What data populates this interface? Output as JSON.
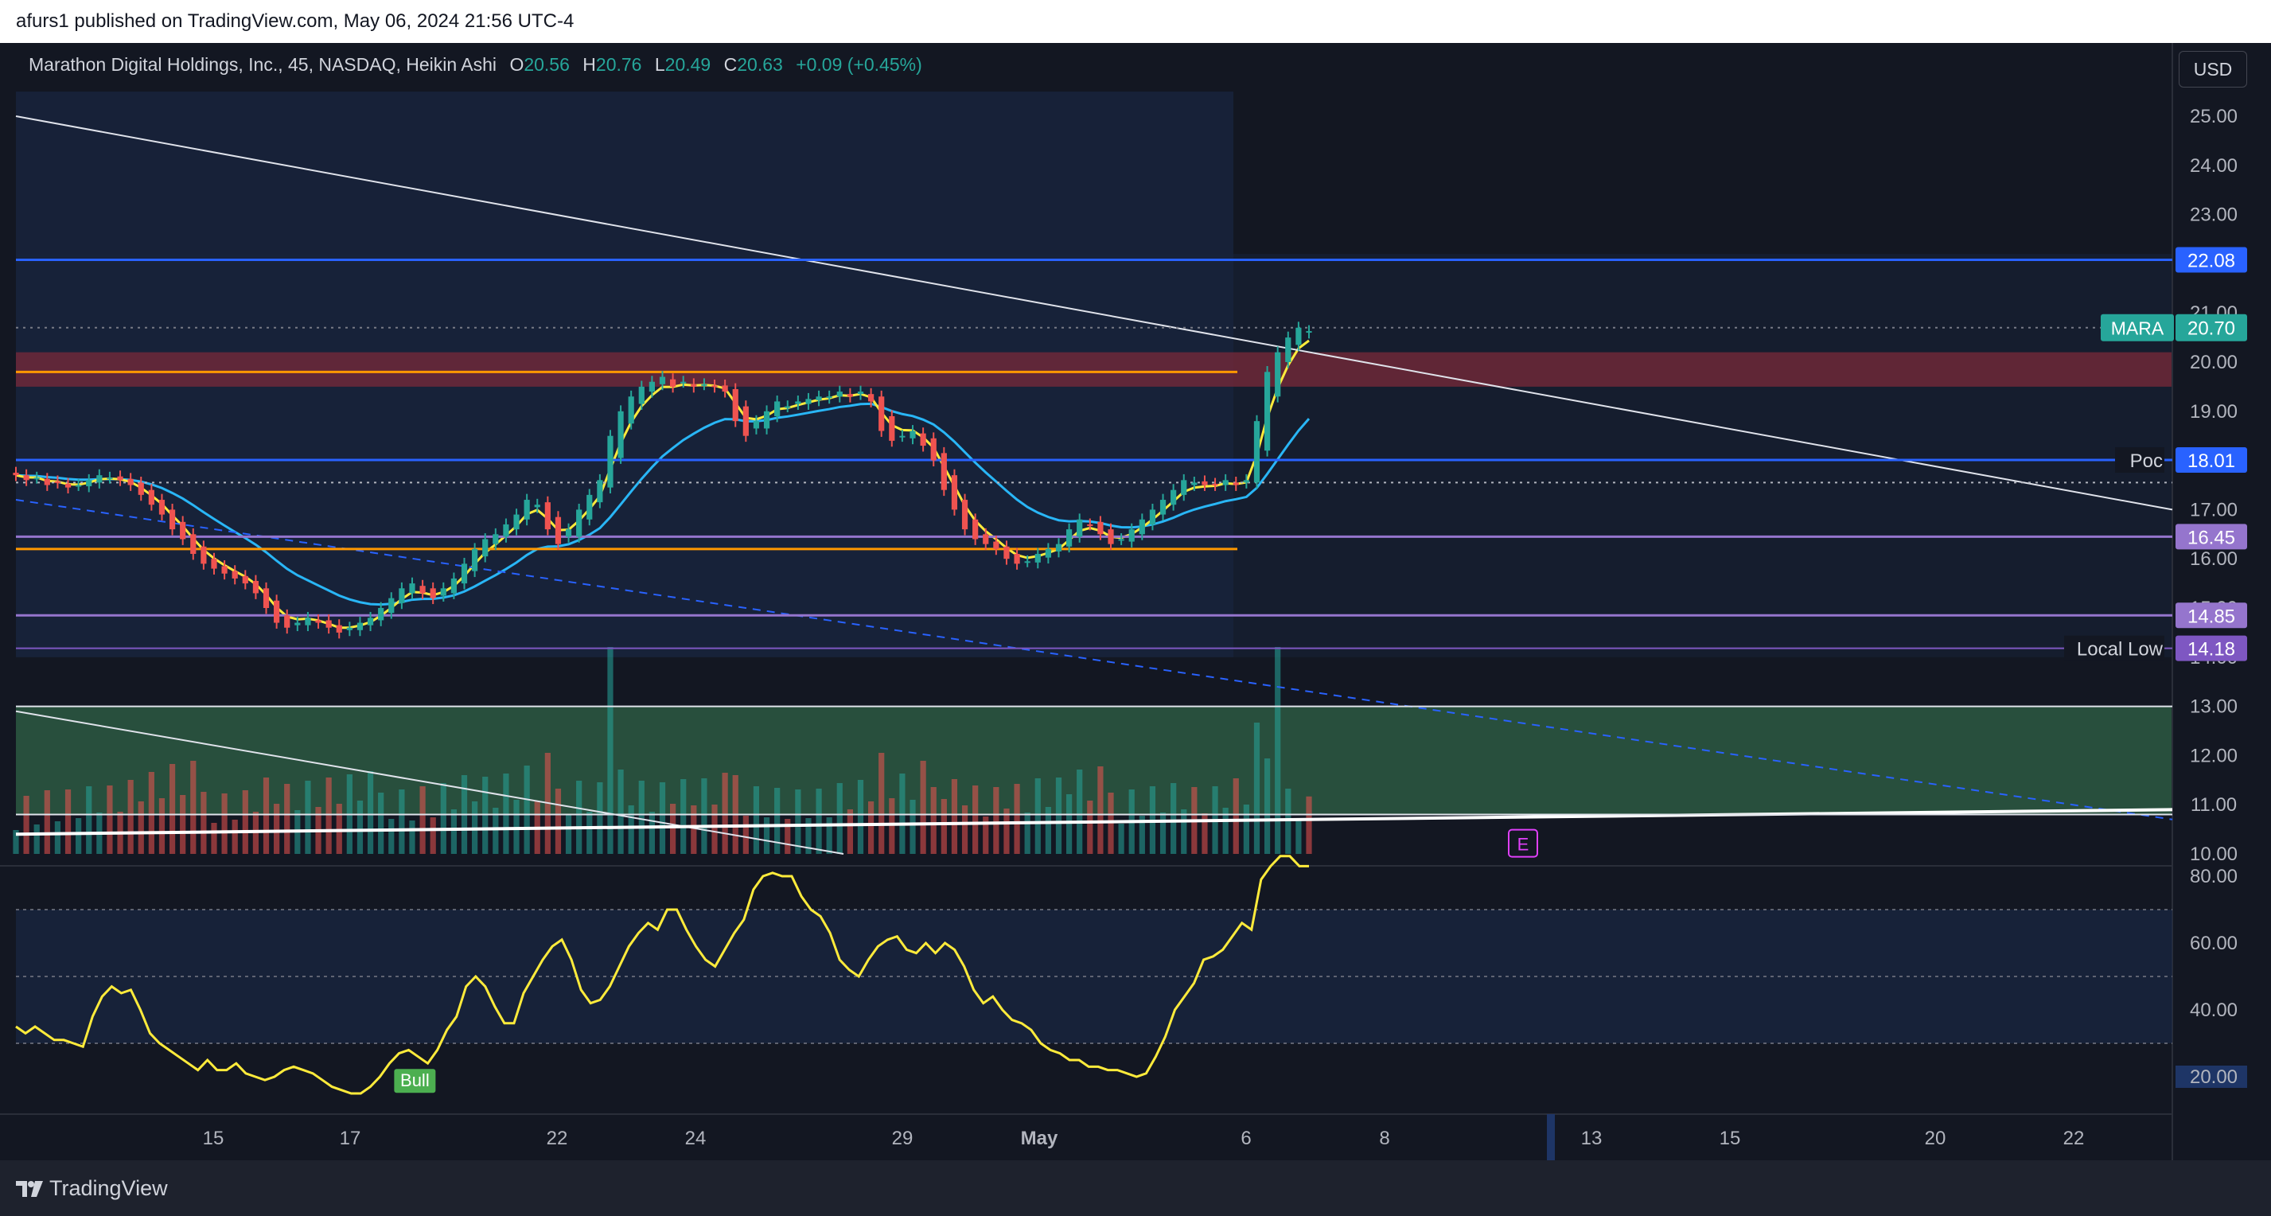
{
  "header": {
    "publish_line": "afurs1 published on TradingView.com, May 06, 2024 21:56 UTC-4"
  },
  "footer": {
    "brand": "TradingView"
  },
  "legend": {
    "title": "Marathon Digital Holdings, Inc., 45, NASDAQ, Heikin Ashi",
    "o_label": "O",
    "o": "20.56",
    "h_label": "H",
    "h": "20.76",
    "l_label": "L",
    "l": "20.49",
    "c_label": "C",
    "c": "20.63",
    "change": "+0.09 (+0.45%)"
  },
  "currency_button": "USD",
  "colors": {
    "up": "#26a69a",
    "down": "#ef5350",
    "ema_fast": "#ffeb3b",
    "ema_slow": "#29b6f6",
    "blue_line": "#2962ff",
    "purple_line": "#9575cd",
    "orange_line": "#ff9800",
    "rsi": "#ffeb3b",
    "resistance_zone": "#7a2a3a",
    "volume_zone": "#2e5e45"
  },
  "chart_data": {
    "type": "candlestick",
    "symbol": "MARA",
    "interval": "45",
    "exchange": "NASDAQ",
    "style": "Heikin Ashi",
    "price_axis": {
      "min": 10.0,
      "max": 25.0,
      "ticks": [
        "25.00",
        "24.00",
        "23.00",
        "22.00",
        "21.00",
        "20.00",
        "19.00",
        "18.00",
        "17.00",
        "16.00",
        "15.00",
        "14.00",
        "13.00",
        "12.00",
        "11.00",
        "10.00"
      ]
    },
    "time_axis": [
      "15",
      "17",
      "22",
      "24",
      "29",
      "May",
      "6",
      "8",
      "13",
      "15",
      "20",
      "22"
    ],
    "series_close": [
      17.7,
      17.6,
      17.65,
      17.5,
      17.55,
      17.45,
      17.5,
      17.6,
      17.7,
      17.65,
      17.6,
      17.5,
      17.3,
      17.1,
      16.9,
      16.6,
      16.4,
      16.1,
      15.9,
      15.8,
      15.7,
      15.6,
      15.5,
      15.3,
      15.0,
      14.7,
      14.6,
      14.7,
      14.8,
      14.7,
      14.6,
      14.5,
      14.6,
      14.7,
      14.8,
      15.0,
      15.2,
      15.4,
      15.5,
      15.3,
      15.2,
      15.4,
      15.6,
      15.9,
      16.2,
      16.4,
      16.5,
      16.7,
      16.9,
      17.2,
      17.1,
      16.6,
      16.3,
      16.6,
      17.0,
      17.3,
      17.6,
      18.5,
      19.0,
      19.3,
      19.5,
      19.6,
      19.7,
      19.5,
      19.6,
      19.5,
      19.55,
      19.5,
      19.4,
      18.8,
      18.5,
      18.8,
      19.0,
      19.2,
      19.1,
      19.2,
      19.25,
      19.3,
      19.3,
      19.4,
      19.3,
      19.4,
      19.2,
      18.6,
      18.4,
      18.5,
      18.6,
      18.3,
      18.0,
      17.4,
      17.0,
      16.6,
      16.4,
      16.3,
      16.2,
      16.0,
      15.9,
      15.95,
      16.1,
      16.2,
      16.3,
      16.6,
      16.8,
      16.7,
      16.5,
      16.3,
      16.4,
      16.6,
      16.8,
      17.0,
      17.2,
      17.4,
      17.6,
      17.55,
      17.5,
      17.5,
      17.6,
      17.5,
      17.6,
      18.8,
      19.8,
      20.2,
      20.5,
      20.7,
      20.63
    ],
    "mara_last": "20.70",
    "levels": [
      {
        "price": 22.08,
        "label": "22.08"
      },
      {
        "price": 18.01,
        "label": "18.01",
        "name": "Poc"
      },
      {
        "price": 16.45,
        "label": "16.45"
      },
      {
        "price": 14.85,
        "label": "14.85"
      },
      {
        "price": 14.18,
        "label": "14.18",
        "name": "Local Low"
      }
    ],
    "orange_levels": [
      19.8,
      16.2
    ],
    "resistance_zone": [
      19.5,
      20.2
    ],
    "volume_zone": [
      10.8,
      13.0
    ],
    "earnings_marker": "E",
    "rsi": {
      "axis_ticks": [
        "80.00",
        "60.00",
        "40.00",
        "20.00"
      ],
      "bands": [
        70,
        50,
        30
      ],
      "values": [
        35,
        33,
        35,
        33,
        31,
        31,
        30,
        29,
        38,
        44,
        47,
        45,
        46,
        40,
        33,
        30,
        28,
        26,
        24,
        22,
        25,
        22,
        22,
        24,
        21,
        20,
        19,
        20,
        22,
        23,
        22,
        21,
        19,
        17,
        16,
        15,
        15,
        17,
        20,
        24,
        27,
        28,
        26,
        24,
        28,
        34,
        38,
        47,
        50,
        47,
        41,
        36,
        36,
        45,
        50,
        55,
        59,
        61,
        55,
        46,
        42,
        43,
        47,
        53,
        59,
        63,
        66,
        64,
        70,
        70,
        64,
        59,
        55,
        53,
        58,
        63,
        67,
        76,
        80,
        81,
        80,
        80,
        74,
        70,
        68,
        63,
        55,
        52,
        50,
        55,
        59,
        61,
        62,
        58,
        57,
        60,
        57,
        60,
        58,
        53,
        46,
        42,
        44,
        40,
        37,
        36,
        34,
        30,
        28,
        27,
        25,
        25,
        23,
        23,
        22,
        22,
        21,
        20,
        21,
        26,
        32,
        40,
        44,
        48,
        55,
        56,
        58,
        62,
        66,
        64,
        79,
        83,
        86,
        86,
        83,
        83
      ],
      "signal_label": "Bull"
    }
  }
}
